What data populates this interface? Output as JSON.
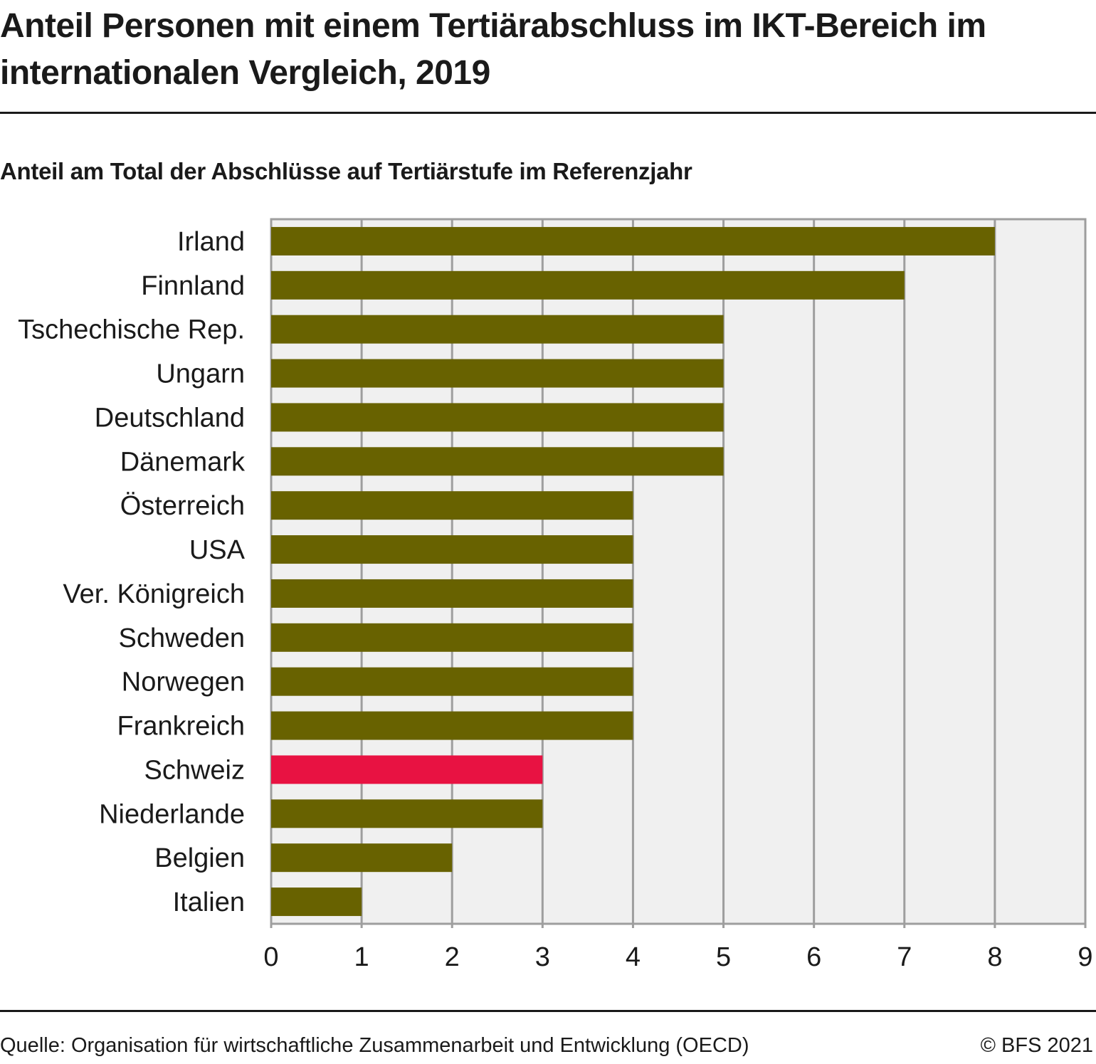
{
  "title": "Anteil Personen mit einem Tertiärabschluss im IKT-Bereich im internationalen Vergleich, 2019",
  "subtitle": "Anteil am Total der Abschlüsse auf Tertiärstufe im Referenzjahr",
  "footer": {
    "source": "Quelle: Organisation für wirtschaftliche Zusammenarbeit und Entwicklung (OECD)",
    "copyright": "© BFS 2021"
  },
  "colors": {
    "bar": "#686200",
    "highlight": "#e81242",
    "plot_background": "#f0f0f0",
    "grid": "#9e9e9e"
  },
  "chart_data": {
    "type": "bar",
    "orientation": "horizontal",
    "title": "Anteil Personen mit einem Tertiärabschluss im IKT-Bereich im internationalen Vergleich, 2019",
    "subtitle": "Anteil am Total der Abschlüsse auf Tertiärstufe im Referenzjahr",
    "xlabel": "",
    "ylabel": "",
    "xlim": [
      0,
      9
    ],
    "xticks": [
      0,
      1,
      2,
      3,
      4,
      5,
      6,
      7,
      8,
      9
    ],
    "grid": true,
    "legend": "none",
    "categories": [
      "Irland",
      "Finnland",
      "Tschechische Rep.",
      "Ungarn",
      "Deutschland",
      "Dänemark",
      "Österreich",
      "USA",
      "Ver. Königreich",
      "Schweden",
      "Norwegen",
      "Frankreich",
      "Schweiz",
      "Niederlande",
      "Belgien",
      "Italien"
    ],
    "values": [
      8,
      7,
      5,
      5,
      5,
      5,
      4,
      4,
      4,
      4,
      4,
      4,
      3,
      3,
      2,
      1
    ],
    "highlighted": [
      "Schweiz"
    ]
  }
}
